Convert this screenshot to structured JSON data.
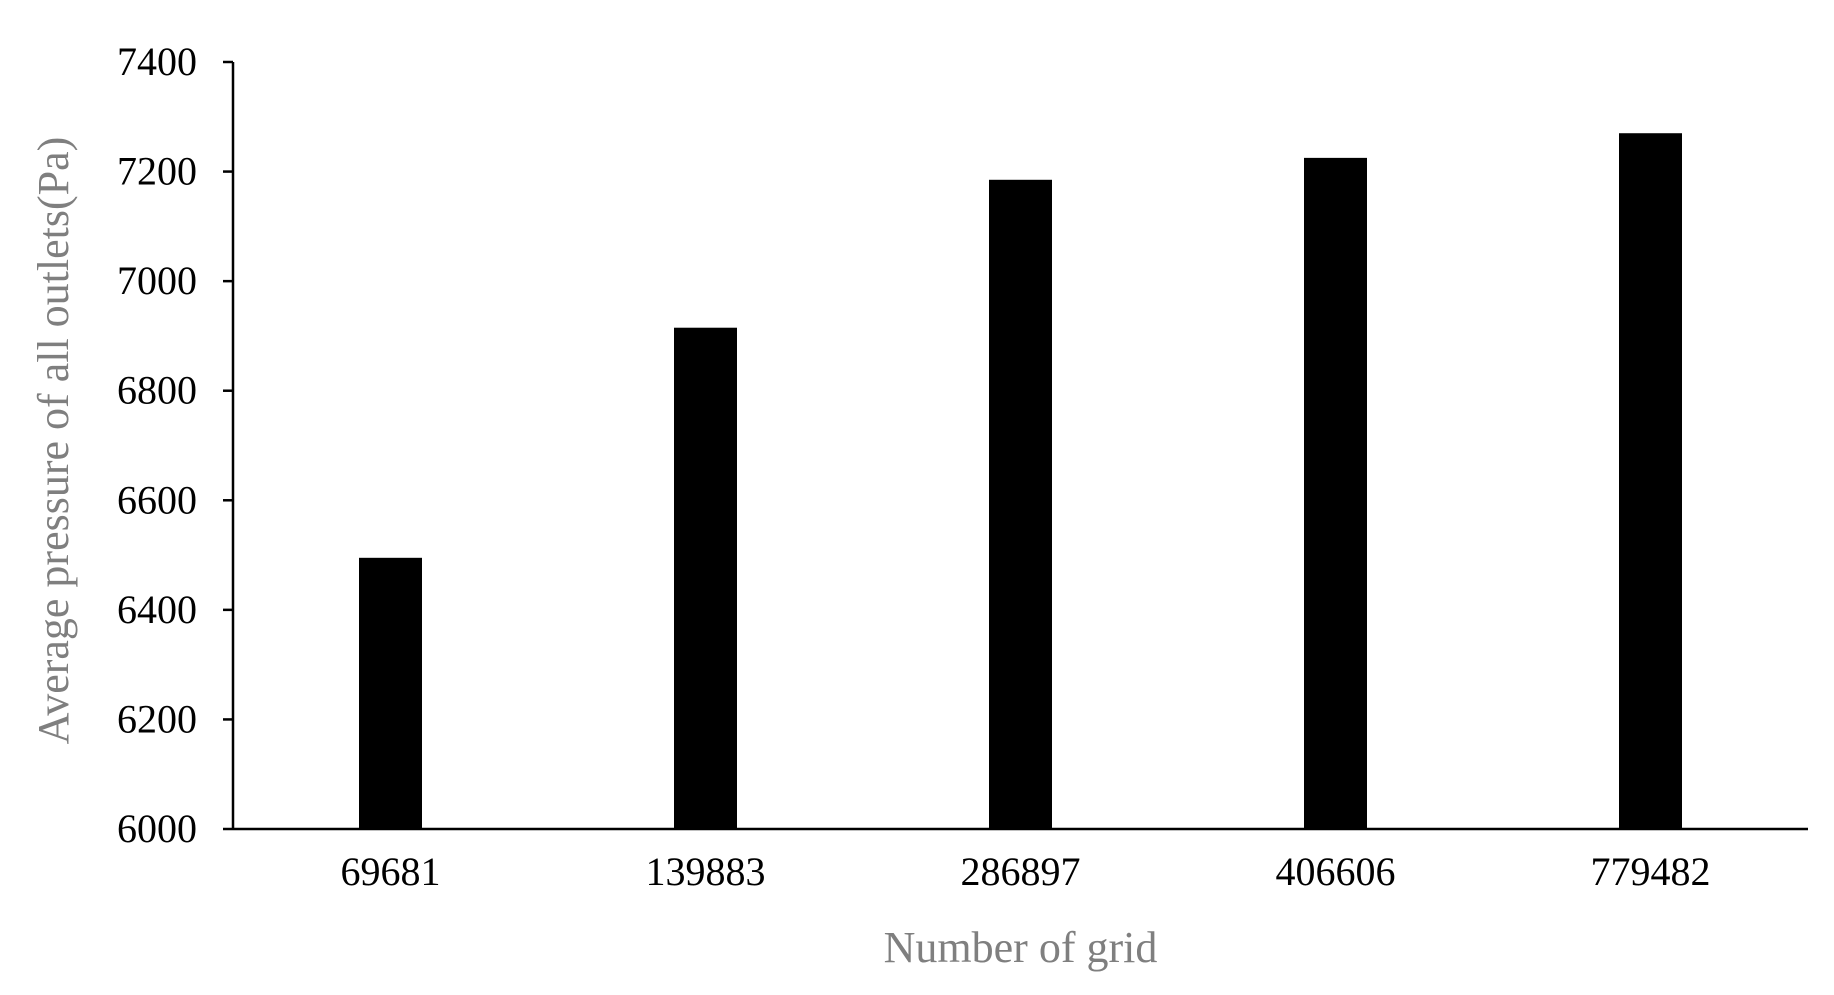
{
  "chart_data": {
    "type": "bar",
    "categories": [
      "69681",
      "139883",
      "286897",
      "406606",
      "779482"
    ],
    "values": [
      6495,
      6915,
      7185,
      7225,
      7270
    ],
    "xlabel": "Number of grid",
    "ylabel": "Average pressure of all outlets(Pa)",
    "ylim": [
      6000,
      7400
    ],
    "yticks": [
      6000,
      6200,
      6400,
      6600,
      6800,
      7000,
      7200,
      7400
    ],
    "grid": false,
    "legend": "none",
    "colors": {
      "bar": "#000000",
      "axis_title": "#7f7f7f",
      "tick_label": "#000000"
    }
  }
}
